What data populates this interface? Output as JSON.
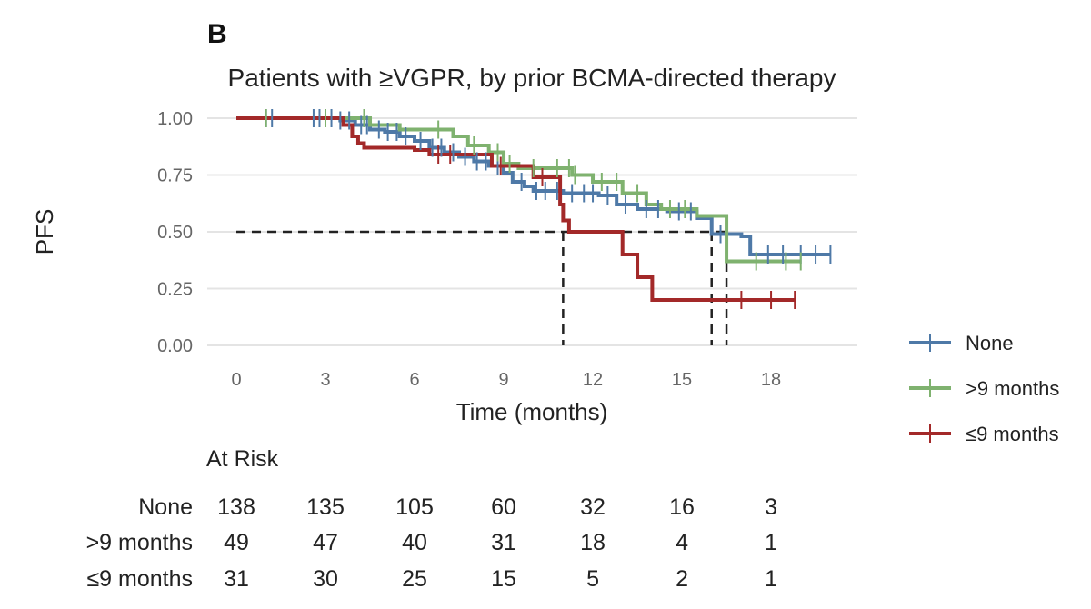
{
  "panel_label": "B",
  "chart_data": {
    "type": "line",
    "subtype": "kaplan-meier",
    "title": "Patients with ≥VGPR, by prior BCMA-directed therapy",
    "xlabel": "Time (months)",
    "ylabel": "PFS",
    "xlim": [
      0,
      20
    ],
    "ylim": [
      0,
      1
    ],
    "xticks": [
      "0",
      "3",
      "6",
      "9",
      "12",
      "15",
      "18"
    ],
    "xtick_values": [
      0,
      3,
      6,
      9,
      12,
      15,
      18
    ],
    "yticks": [
      "0.00",
      "0.25",
      "0.50",
      "0.75",
      "1.00"
    ],
    "ytick_values": [
      0,
      0.25,
      0.5,
      0.75,
      1.0
    ],
    "grid": true,
    "legend_position": "right",
    "median_reference_y": 0.5,
    "median_times": [
      11.0,
      16.0,
      16.5
    ],
    "series": [
      {
        "name": "None",
        "color": "#4e79a7",
        "steps": [
          [
            0,
            1.0
          ],
          [
            3.5,
            0.99
          ],
          [
            4.0,
            0.97
          ],
          [
            4.5,
            0.95
          ],
          [
            5.0,
            0.94
          ],
          [
            5.5,
            0.92
          ],
          [
            6.0,
            0.9
          ],
          [
            6.5,
            0.87
          ],
          [
            7.0,
            0.85
          ],
          [
            7.5,
            0.83
          ],
          [
            8.0,
            0.81
          ],
          [
            8.5,
            0.79
          ],
          [
            9.0,
            0.76
          ],
          [
            9.3,
            0.72
          ],
          [
            9.7,
            0.7
          ],
          [
            10.0,
            0.68
          ],
          [
            11.0,
            0.67
          ],
          [
            12.2,
            0.66
          ],
          [
            12.8,
            0.62
          ],
          [
            13.5,
            0.6
          ],
          [
            14.5,
            0.59
          ],
          [
            15.5,
            0.56
          ],
          [
            16.0,
            0.49
          ],
          [
            17.0,
            0.48
          ],
          [
            17.3,
            0.4
          ],
          [
            20.0,
            0.4
          ]
        ],
        "censor_times": [
          1.0,
          1.2,
          2.6,
          2.8,
          3.0,
          3.2,
          3.5,
          3.8,
          4.2,
          4.4,
          4.8,
          5.1,
          5.4,
          5.7,
          6.2,
          6.6,
          6.9,
          7.3,
          7.7,
          8.1,
          8.4,
          8.8,
          9.6,
          10.1,
          10.4,
          10.8,
          11.3,
          11.7,
          12.0,
          12.5,
          13.1,
          13.8,
          14.2,
          14.9,
          15.3,
          16.3,
          17.9,
          18.4,
          19.0,
          19.5,
          20.0
        ]
      },
      {
        "name": ">9 months",
        "color": "#7fb26f",
        "steps": [
          [
            0,
            1.0
          ],
          [
            4.5,
            0.97
          ],
          [
            5.5,
            0.95
          ],
          [
            7.3,
            0.92
          ],
          [
            7.8,
            0.88
          ],
          [
            8.5,
            0.85
          ],
          [
            9.0,
            0.8
          ],
          [
            9.5,
            0.78
          ],
          [
            11.3,
            0.75
          ],
          [
            12.0,
            0.72
          ],
          [
            13.0,
            0.67
          ],
          [
            13.8,
            0.62
          ],
          [
            14.3,
            0.6
          ],
          [
            15.5,
            0.57
          ],
          [
            16.5,
            0.37
          ],
          [
            19.0,
            0.37
          ]
        ],
        "censor_times": [
          1.0,
          3.0,
          4.3,
          6.8,
          8.0,
          8.8,
          9.2,
          10.0,
          10.8,
          11.2,
          11.4,
          12.3,
          12.8,
          13.5,
          14.6,
          15.1,
          17.5,
          18.5,
          19.0
        ]
      },
      {
        "name": "≤9 months",
        "color": "#a32929",
        "steps": [
          [
            0,
            1.0
          ],
          [
            3.6,
            0.97
          ],
          [
            3.9,
            0.92
          ],
          [
            4.1,
            0.89
          ],
          [
            4.3,
            0.87
          ],
          [
            6.0,
            0.86
          ],
          [
            6.5,
            0.84
          ],
          [
            8.6,
            0.79
          ],
          [
            10.0,
            0.74
          ],
          [
            10.9,
            0.62
          ],
          [
            11.0,
            0.55
          ],
          [
            11.2,
            0.5
          ],
          [
            13.0,
            0.4
          ],
          [
            13.5,
            0.3
          ],
          [
            14.0,
            0.2
          ],
          [
            18.8,
            0.2
          ]
        ],
        "censor_times": [
          6.8,
          7.2,
          8.9,
          10.3,
          17.0,
          18.0,
          18.8
        ]
      }
    ]
  },
  "at_risk": {
    "title": "At Risk",
    "rows": [
      {
        "label": "None",
        "values": [
          "138",
          "135",
          "105",
          "60",
          "32",
          "16",
          "3"
        ]
      },
      {
        "label": ">9 months",
        "values": [
          "49",
          "47",
          "40",
          "31",
          "18",
          "4",
          "1"
        ]
      },
      {
        "label": "≤9 months",
        "values": [
          "31",
          "30",
          "25",
          "15",
          "5",
          "2",
          "1"
        ]
      }
    ]
  }
}
